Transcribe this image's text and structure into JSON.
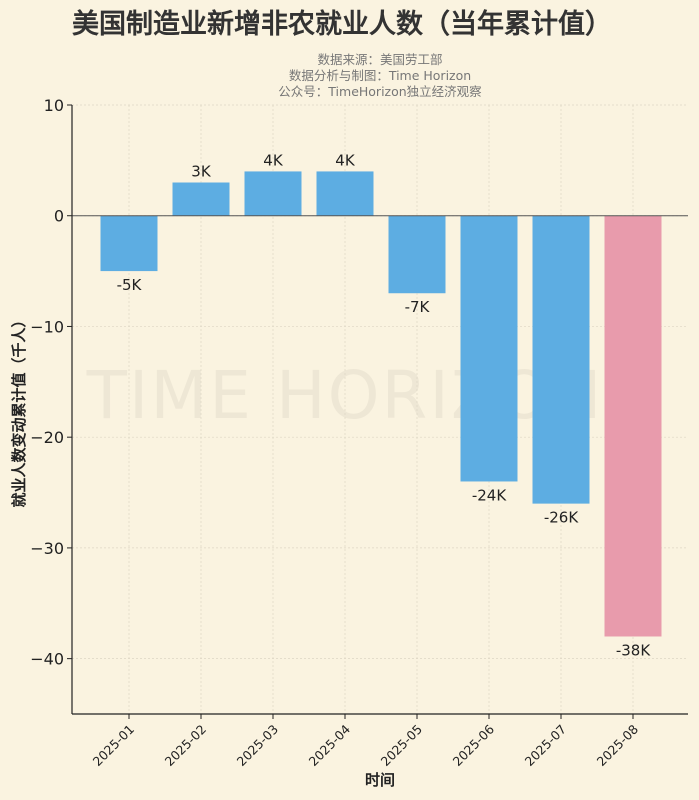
{
  "chart_data": {
    "type": "bar",
    "title": "美国制造业新增非农就业人数（当年累计值）",
    "subtitle": [
      "数据来源：美国劳工部",
      "数据分析与制图：Time Horizon",
      "公众号：TimeHorizon独立经济观察"
    ],
    "watermark": "TIME HORIZON",
    "xlabel": "时间",
    "ylabel": "就业人数变动累计值（千人）",
    "categories": [
      "2025-01",
      "2025-02",
      "2025-03",
      "2025-04",
      "2025-05",
      "2025-06",
      "2025-07",
      "2025-08"
    ],
    "values": [
      -5,
      3,
      4,
      4,
      -7,
      -24,
      -26,
      -38
    ],
    "data_labels": [
      "-5K",
      "3K",
      "4K",
      "4K",
      "-7K",
      "-24K",
      "-26K",
      "-38K"
    ],
    "ylim": [
      -45,
      10
    ],
    "yticks": [
      10,
      0,
      -10,
      -20,
      -30,
      -40
    ],
    "ytick_labels": [
      "10",
      "0",
      "−10",
      "−20",
      "−30",
      "−40"
    ],
    "grid": true,
    "colors": {
      "default": "#5dade2",
      "highlight": "#e89bac",
      "background": "#faf3e0"
    },
    "highlight_index": 7
  }
}
